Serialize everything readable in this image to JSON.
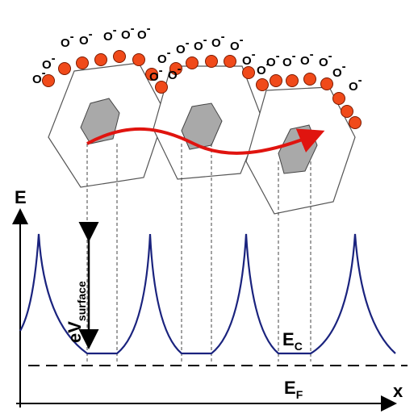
{
  "axes": {
    "y_label": "E",
    "x_label": "x"
  },
  "barrier_label": {
    "main": "eV",
    "subscript": "surface"
  },
  "conduction_band": {
    "main": "E",
    "subscript": "C"
  },
  "fermi_level": {
    "main": "E",
    "subscript": "F"
  },
  "adsorbed_ion": {
    "symbol": "O",
    "charge": "-"
  }
}
